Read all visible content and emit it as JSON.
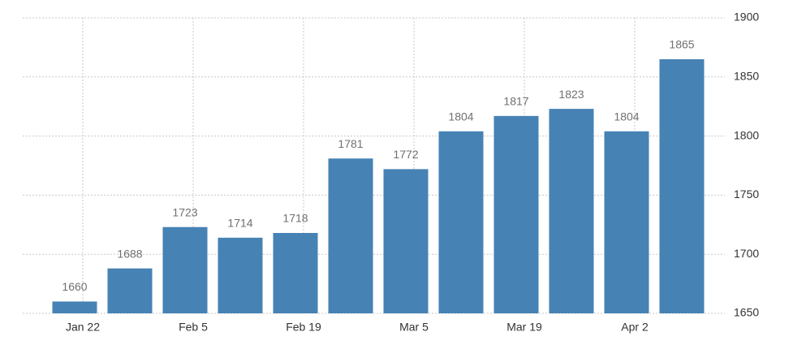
{
  "chart_data": {
    "type": "bar",
    "categories": [
      "Jan 22",
      null,
      "Feb 5",
      null,
      "Feb 19",
      null,
      "Mar 5",
      null,
      "Mar 19",
      null,
      "Apr 2",
      null
    ],
    "values": [
      1660,
      1688,
      1723,
      1714,
      1718,
      1781,
      1772,
      1804,
      1817,
      1823,
      1804,
      1865
    ],
    "color": "#4682b4",
    "ylim": [
      1650,
      1900
    ],
    "yticks": [
      1650,
      1700,
      1750,
      1800,
      1850,
      1900
    ],
    "grid": true
  }
}
